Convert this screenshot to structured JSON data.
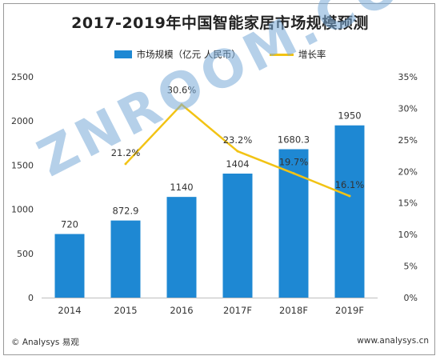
{
  "title": "2017-2019年中国智能家居市场规模预测",
  "legend": {
    "bar_label": "市场规模（亿元 人民币）",
    "line_label": "增长率"
  },
  "colors": {
    "bar": "#1E88D3",
    "line": "#F2C314",
    "axis": "#555555"
  },
  "footer": {
    "left": "© Analysys 易观",
    "right": "www.analysys.cn"
  },
  "watermark": "ZNROOM.COM",
  "chart_data": {
    "type": "bar",
    "categories": [
      "2014",
      "2015",
      "2016",
      "2017F",
      "2018F",
      "2019F"
    ],
    "series": [
      {
        "name": "市场规模（亿元 人民币）",
        "type": "bar",
        "axis": "left",
        "values": [
          720,
          872.9,
          1140,
          1404,
          1680.3,
          1950
        ],
        "labels": [
          "720",
          "872.9",
          "1140",
          "1404",
          "1680.3",
          "1950"
        ]
      },
      {
        "name": "增长率",
        "type": "line",
        "axis": "right",
        "values": [
          null,
          21.2,
          30.6,
          23.2,
          19.7,
          16.1
        ],
        "labels": [
          "",
          "21.2%",
          "30.6%",
          "23.2%",
          "19.7%",
          "16.1%"
        ]
      }
    ],
    "y_left": {
      "range": [
        0,
        2500
      ],
      "ticks": [
        0,
        500,
        1000,
        1500,
        2000,
        2500
      ],
      "tick_labels": [
        "0",
        "500",
        "1000",
        "1500",
        "2000",
        "2500"
      ]
    },
    "y_right": {
      "range": [
        0,
        35
      ],
      "ticks": [
        0,
        5,
        10,
        15,
        20,
        25,
        30,
        35
      ],
      "tick_labels": [
        "0%",
        "5%",
        "10%",
        "15%",
        "20%",
        "25%",
        "30%",
        "35%"
      ]
    },
    "grid": false,
    "legend_position": "top-center"
  }
}
